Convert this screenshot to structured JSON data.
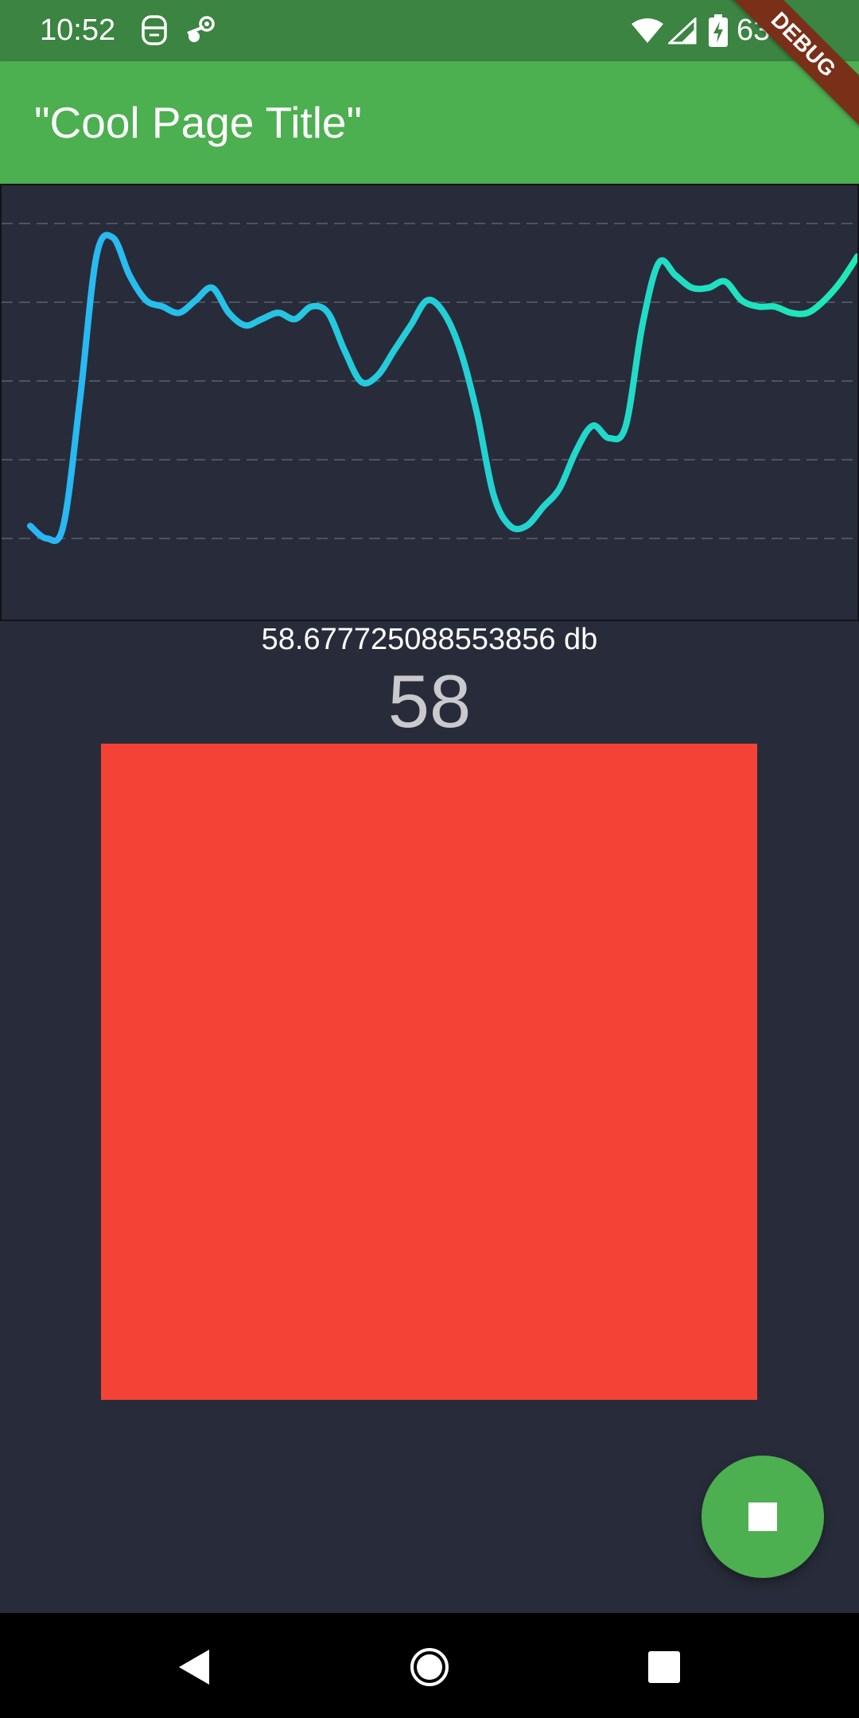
{
  "status_bar": {
    "time": "10:52",
    "battery": "63%",
    "icons": [
      "face-icon",
      "steam-icon",
      "wifi-icon",
      "signal-icon",
      "battery-charging-icon"
    ]
  },
  "app_bar": {
    "title": "\"Cool Page Title\""
  },
  "debug_banner": {
    "label": "DEBUG",
    "color": "#7a2f19"
  },
  "chart_data": {
    "type": "line",
    "title": "",
    "xlabel": "",
    "ylabel": "",
    "grid": true,
    "ylim": [
      0,
      100
    ],
    "gradient": [
      "#29b6f6",
      "#1de9b6"
    ],
    "values": [
      52,
      50,
      52,
      72,
      95,
      98,
      92,
      88,
      87,
      86,
      88,
      90,
      86,
      84,
      85,
      86,
      85,
      87,
      86,
      80,
      75,
      76,
      80,
      84,
      88,
      86,
      80,
      70,
      57,
      52,
      52,
      55,
      58,
      64,
      68,
      66,
      68,
      84,
      94,
      92,
      90,
      90,
      91,
      88,
      87,
      87,
      86,
      86,
      88,
      91,
      95
    ]
  },
  "readout": {
    "db_text": "58.677725088553856 db",
    "db_int": "58"
  },
  "indicator": {
    "color": "#f44336"
  },
  "fab": {
    "icon": "stop-icon",
    "color": "#4caf50"
  },
  "nav": {
    "back": "back-icon",
    "home": "home-icon",
    "recents": "recents-icon"
  }
}
